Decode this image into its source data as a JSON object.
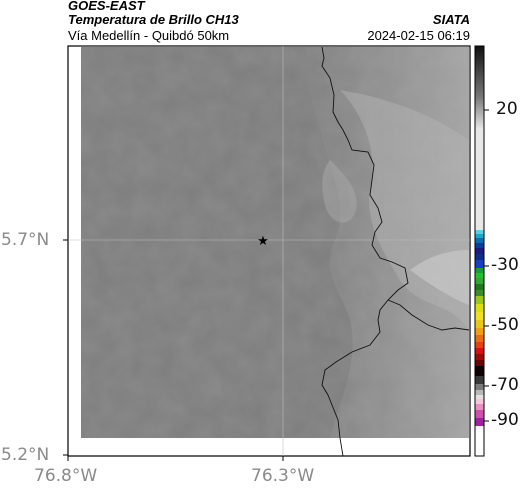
{
  "header": {
    "satellite": "GOES-EAST",
    "product": "Temperatura de Brillo CH13",
    "region": "Vía Medellín - Quibdó 50km",
    "brand": "SIATA",
    "datetime": "2024-02-15 06:19"
  },
  "axes": {
    "y_ticks": [
      "5.7°N",
      "5.2°N"
    ],
    "x_ticks": [
      "76.8°W",
      "76.3°W"
    ]
  },
  "colorbar": {
    "ticks": [
      "20",
      "-30",
      "-50",
      "-70",
      "-90"
    ]
  },
  "map": {
    "marker": "star-marker"
  }
}
